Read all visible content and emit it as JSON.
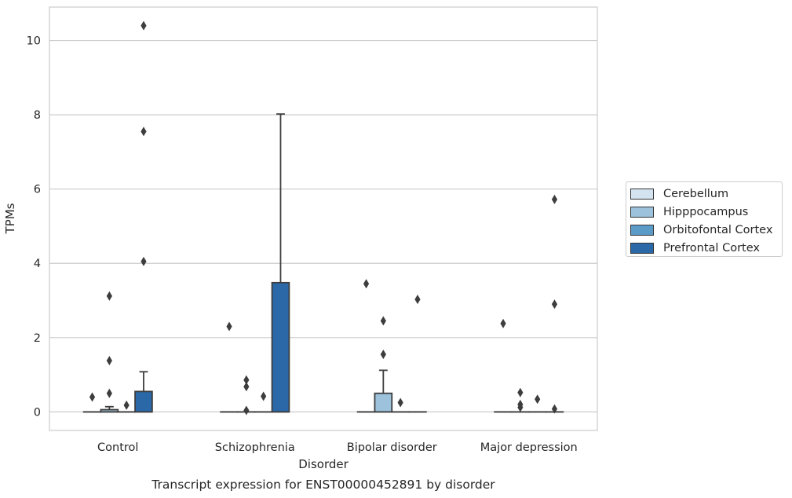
{
  "chart_data": {
    "type": "box",
    "xlabel": "Disorder",
    "ylabel": "TPMs",
    "caption": "Transcript expression for ENST00000452891 by disorder",
    "ylim": [
      -0.5,
      10.9
    ],
    "yticks": [
      0,
      2,
      4,
      6,
      8,
      10
    ],
    "grid": "horizontal",
    "legend_placement": "right",
    "categories": [
      "Control",
      "Schizophrenia",
      "Bipolar disorder",
      "Major depression"
    ],
    "series": [
      {
        "name": "Cerebellum",
        "color": "#d4e3f0",
        "boxes": [
          {
            "q1": 0,
            "median": 0,
            "q3": 0,
            "whisker_low": 0,
            "whisker_high": 0,
            "outliers": [
              0.4
            ]
          },
          {
            "q1": 0,
            "median": 0,
            "q3": 0,
            "whisker_low": 0,
            "whisker_high": 0,
            "outliers": [
              2.3
            ]
          },
          {
            "q1": 0,
            "median": 0,
            "q3": 0,
            "whisker_low": 0,
            "whisker_high": 0,
            "outliers": [
              3.45
            ]
          },
          {
            "q1": 0,
            "median": 0,
            "q3": 0,
            "whisker_low": 0,
            "whisker_high": 0,
            "outliers": [
              2.38
            ]
          }
        ]
      },
      {
        "name": "Hipppocampus",
        "color": "#9cc2dc",
        "boxes": [
          {
            "q1": 0,
            "median": 0,
            "q3": 0.06,
            "whisker_low": 0,
            "whisker_high": 0.14,
            "outliers": [
              0.5,
              1.38,
              3.12
            ]
          },
          {
            "q1": 0,
            "median": 0,
            "q3": 0,
            "whisker_low": 0,
            "whisker_high": 0,
            "outliers": [
              0.04,
              0.68,
              0.86
            ]
          },
          {
            "q1": 0,
            "median": 0,
            "q3": 0.5,
            "whisker_low": 0,
            "whisker_high": 1.12,
            "outliers": [
              1.55,
              2.45
            ]
          },
          {
            "q1": 0,
            "median": 0,
            "q3": 0,
            "whisker_low": 0,
            "whisker_high": 0,
            "outliers": [
              0.12,
              0.2,
              0.52
            ]
          }
        ]
      },
      {
        "name": "Orbitofontal Cortex",
        "color": "#5b9bc8",
        "boxes": [
          {
            "q1": 0,
            "median": 0,
            "q3": 0,
            "whisker_low": 0,
            "whisker_high": 0,
            "outliers": [
              0.18
            ]
          },
          {
            "q1": 0,
            "median": 0,
            "q3": 0,
            "whisker_low": 0,
            "whisker_high": 0,
            "outliers": [
              0.42
            ]
          },
          {
            "q1": 0,
            "median": 0,
            "q3": 0,
            "whisker_low": 0,
            "whisker_high": 0,
            "outliers": [
              0.25
            ]
          },
          {
            "q1": 0,
            "median": 0,
            "q3": 0,
            "whisker_low": 0,
            "whisker_high": 0,
            "outliers": [
              0.34
            ]
          }
        ]
      },
      {
        "name": "Prefrontal Cortex",
        "color": "#2a68a8",
        "boxes": [
          {
            "q1": 0,
            "median": 0,
            "q3": 0.55,
            "whisker_low": 0,
            "whisker_high": 1.08,
            "outliers": [
              4.05,
              7.55,
              10.4
            ]
          },
          {
            "q1": 0,
            "median": 0,
            "q3": 3.48,
            "whisker_low": 0,
            "whisker_high": 8.02,
            "outliers": []
          },
          {
            "q1": 0,
            "median": 0,
            "q3": 0,
            "whisker_low": 0,
            "whisker_high": 0,
            "outliers": [
              3.03
            ]
          },
          {
            "q1": 0,
            "median": 0,
            "q3": 0,
            "whisker_low": 0,
            "whisker_high": 0,
            "outliers": [
              0.08,
              2.9,
              5.72
            ]
          }
        ]
      }
    ]
  }
}
